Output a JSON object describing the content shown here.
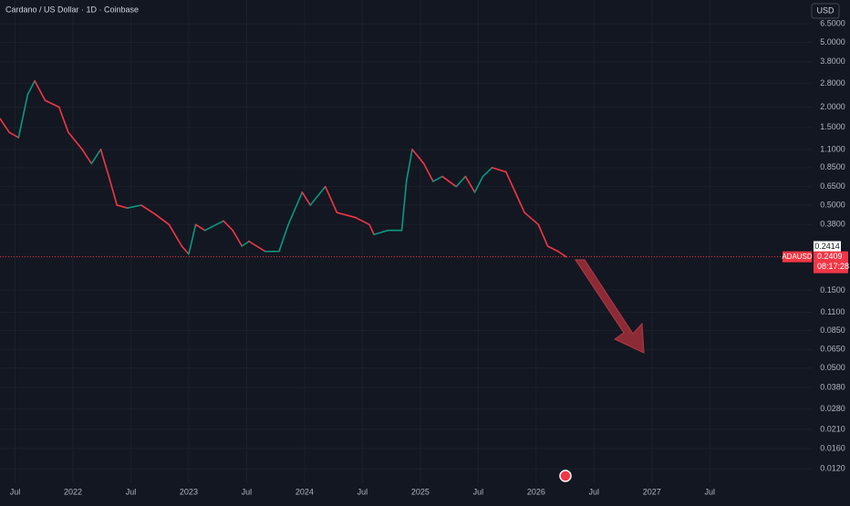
{
  "header": {
    "title": "Cardano / US Dollar · 1D · Coinbase",
    "currency": "USD"
  },
  "chart_data": {
    "type": "line",
    "log_scale": true,
    "grid": true,
    "up_color": "#089981",
    "down_color": "#f23645",
    "x": [
      2021.37,
      2021.45,
      2021.53,
      2021.61,
      2021.67,
      2021.76,
      2021.88,
      2021.96,
      2022.08,
      2022.16,
      2022.24,
      2022.31,
      2022.38,
      2022.47,
      2022.59,
      2022.71,
      2022.83,
      2022.94,
      2023.0,
      2023.06,
      2023.14,
      2023.3,
      2023.38,
      2023.46,
      2023.52,
      2023.66,
      2023.78,
      2023.86,
      2023.98,
      2024.05,
      2024.18,
      2024.28,
      2024.44,
      2024.56,
      2024.6,
      2024.72,
      2024.84,
      2024.88,
      2024.93,
      2025.03,
      2025.11,
      2025.19,
      2025.31,
      2025.39,
      2025.47,
      2025.54,
      2025.62,
      2025.74,
      2025.82,
      2025.9,
      2026.02,
      2026.1,
      2026.19,
      2026.26
    ],
    "series": [
      {
        "name": "ADAUSD",
        "color": "#089981",
        "values": [
          1.7,
          1.4,
          1.3,
          2.4,
          2.9,
          2.2,
          2.0,
          1.4,
          1.1,
          0.9,
          1.1,
          0.75,
          0.5,
          0.48,
          0.5,
          0.44,
          0.38,
          0.28,
          0.25,
          0.38,
          0.35,
          0.4,
          0.35,
          0.28,
          0.3,
          0.26,
          0.26,
          0.38,
          0.6,
          0.5,
          0.65,
          0.45,
          0.42,
          0.38,
          0.33,
          0.35,
          0.35,
          0.7,
          1.1,
          0.9,
          0.7,
          0.75,
          0.65,
          0.75,
          0.6,
          0.75,
          0.85,
          0.8,
          0.6,
          0.45,
          0.38,
          0.28,
          0.26,
          0.2409
        ]
      }
    ],
    "xlim": [
      2021.37,
      2028.38
    ],
    "ylim": [
      0.0098,
      9.1
    ],
    "xticks": [
      {
        "value": 2021.5,
        "label": "Jul"
      },
      2022,
      {
        "value": 2022.5,
        "label": "Jul"
      },
      2023,
      {
        "value": 2023.5,
        "label": "Jul"
      },
      2024,
      {
        "value": 2024.5,
        "label": "Jul"
      },
      2025,
      {
        "value": 2025.5,
        "label": "Jul"
      },
      2026,
      {
        "value": 2026.5,
        "label": "Jul"
      },
      2027,
      {
        "value": 2027.5,
        "label": "Jul"
      }
    ],
    "yticks": [
      {
        "value": 6.5,
        "label": "6.5000"
      },
      {
        "value": 5,
        "label": "5.0000"
      },
      {
        "value": 3.8,
        "label": "3.8000"
      },
      {
        "value": 2.8,
        "label": "2.8000"
      },
      {
        "value": 2,
        "label": "2.0000"
      },
      {
        "value": 1.5,
        "label": "1.5000"
      },
      {
        "value": 1.1,
        "label": "1.1000"
      },
      {
        "value": 0.85,
        "label": "0.8500"
      },
      {
        "value": 0.65,
        "label": "0.6500"
      },
      {
        "value": 0.5,
        "label": "0.5000"
      },
      {
        "value": 0.38,
        "label": "0.3800"
      },
      {
        "value": 0.15,
        "label": "0.1500"
      },
      {
        "value": 0.11,
        "label": "0.1100"
      },
      {
        "value": 0.085,
        "label": "0.0850"
      },
      {
        "value": 0.065,
        "label": "0.0650"
      },
      {
        "value": 0.05,
        "label": "0.0500"
      },
      {
        "value": 0.038,
        "label": "0.0380"
      },
      {
        "value": 0.028,
        "label": "0.0280"
      },
      {
        "value": 0.021,
        "label": "0.0210"
      },
      {
        "value": 0.016,
        "label": "0.0160"
      },
      {
        "value": 0.012,
        "label": "0.0120"
      }
    ],
    "high_marker": 0.2414,
    "last": {
      "symbol": "ADAUSD",
      "price": 0.2409,
      "countdown": "08:17:28"
    }
  }
}
